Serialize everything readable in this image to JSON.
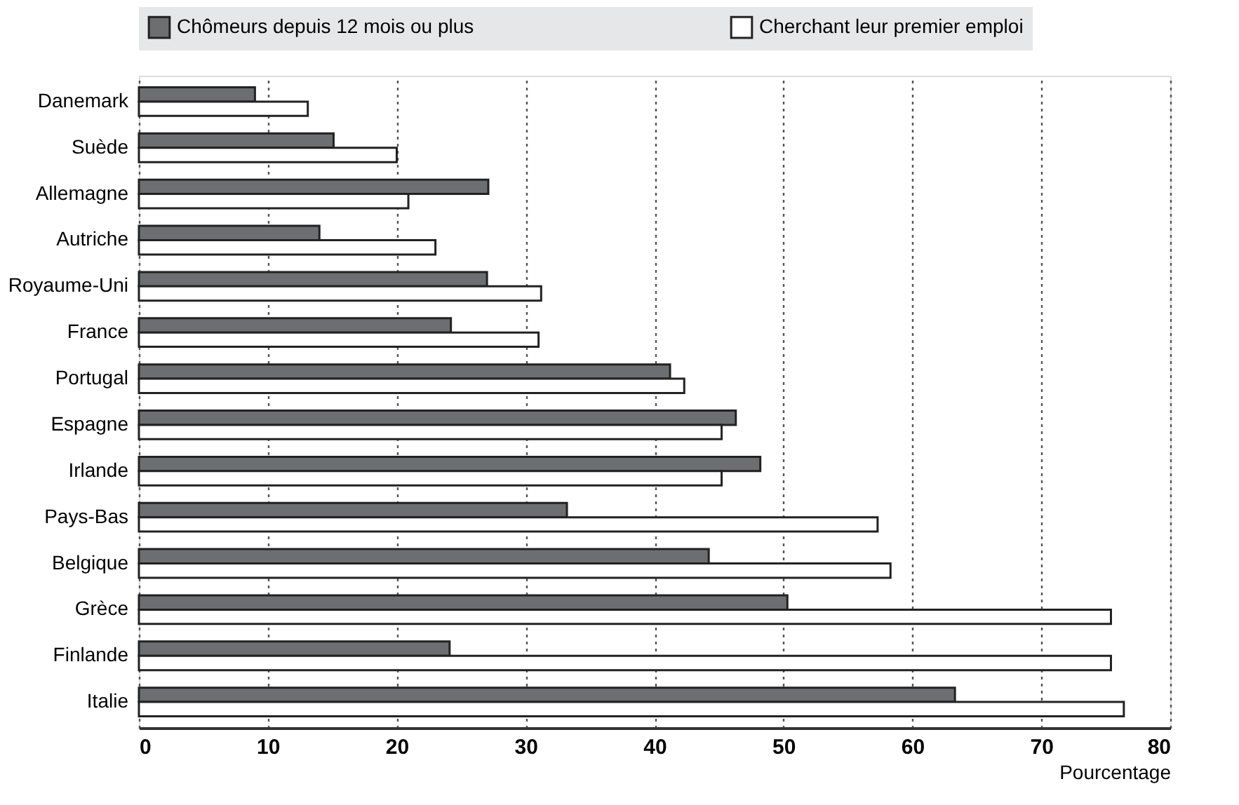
{
  "chart_data": {
    "type": "bar",
    "orientation": "horizontal",
    "xlabel": "Pourcentage",
    "categories": [
      "Danemark",
      "Suède",
      "Allemagne",
      "Autriche",
      "Royaume-Uni",
      "France",
      "Portugal",
      "Espagne",
      "Irlande",
      "Pays-Bas",
      "Belgique",
      "Grèce",
      "Finlande",
      "Italie"
    ],
    "series": [
      {
        "name": "Chômeurs depuis 12 mois ou plus",
        "color": "#6d6e71",
        "values": [
          9.0,
          15.1,
          27.1,
          14.0,
          27.0,
          24.2,
          41.2,
          46.3,
          48.2,
          33.2,
          44.2,
          50.3,
          24.1,
          63.3
        ]
      },
      {
        "name": "Cherchant leur premier emploi",
        "color": "#ffffff",
        "values": [
          13.1,
          20.0,
          20.9,
          23.0,
          31.2,
          31.0,
          42.3,
          45.2,
          45.2,
          57.3,
          58.3,
          75.4,
          75.4,
          76.4
        ]
      }
    ],
    "xlim": [
      0,
      80
    ],
    "xticks": [
      0,
      10,
      20,
      30,
      40,
      50,
      60,
      70,
      80
    ],
    "grid": "x",
    "legend": "top"
  }
}
